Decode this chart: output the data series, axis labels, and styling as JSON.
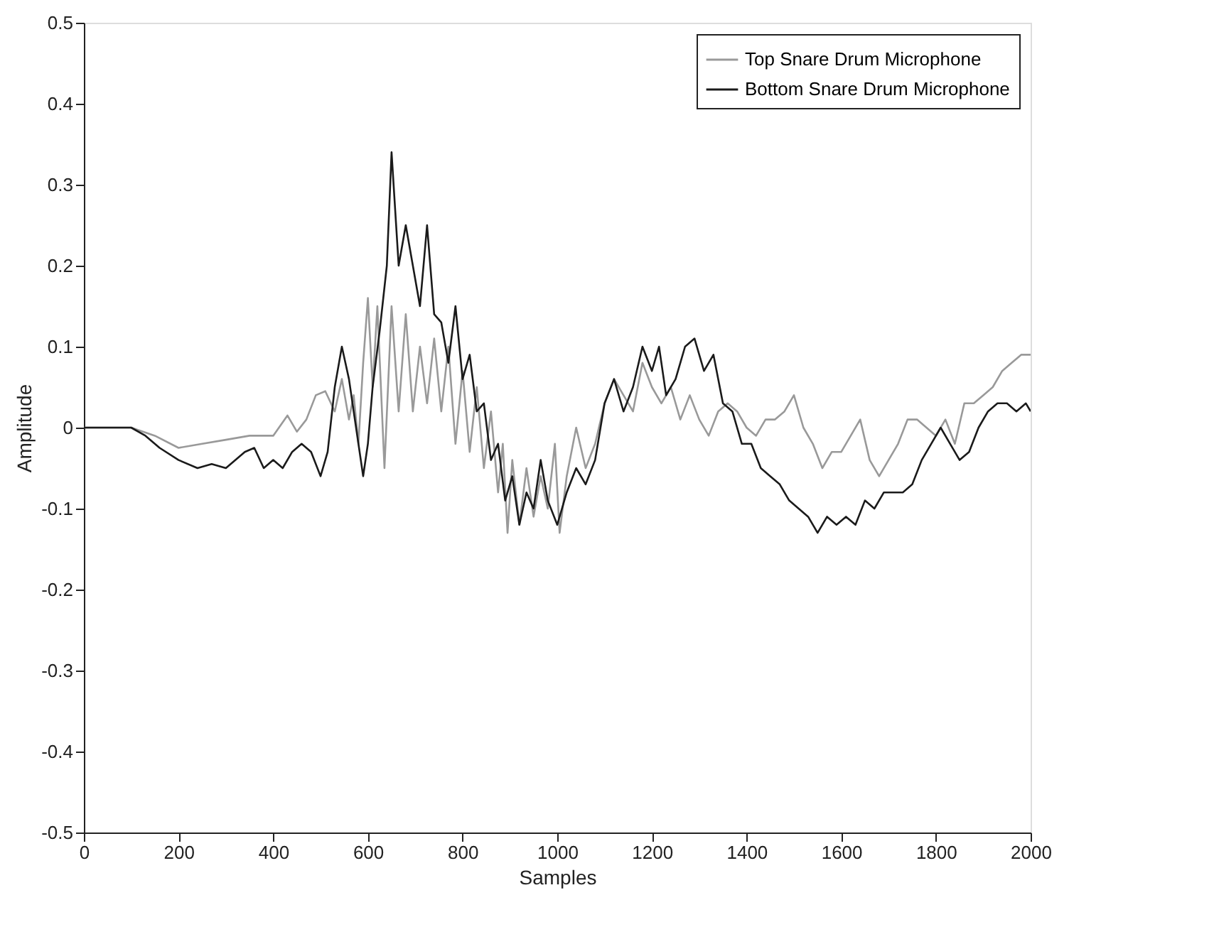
{
  "chart_data": {
    "type": "line",
    "xlabel": "Samples",
    "ylabel": "Amplitude",
    "xlim": [
      0,
      2000
    ],
    "ylim": [
      -0.5,
      0.5
    ],
    "xticks": [
      0,
      200,
      400,
      600,
      800,
      1000,
      1200,
      1400,
      1600,
      1800,
      2000
    ],
    "yticks": [
      -0.5,
      -0.4,
      -0.3,
      -0.2,
      -0.1,
      0,
      0.1,
      0.2,
      0.3,
      0.4,
      0.5
    ],
    "grid": false,
    "legend": "top right",
    "marker": "none",
    "line_style": "solid",
    "series": [
      {
        "name": "Top Snare Drum Microphone",
        "color": "#999999",
        "x": [
          0,
          100,
          150,
          200,
          250,
          300,
          350,
          400,
          430,
          450,
          470,
          490,
          510,
          530,
          545,
          560,
          570,
          580,
          590,
          600,
          610,
          620,
          635,
          650,
          665,
          680,
          695,
          710,
          725,
          740,
          755,
          770,
          785,
          800,
          815,
          830,
          845,
          860,
          875,
          885,
          895,
          905,
          920,
          935,
          950,
          965,
          980,
          995,
          1005,
          1020,
          1040,
          1060,
          1080,
          1100,
          1120,
          1140,
          1160,
          1180,
          1200,
          1220,
          1240,
          1260,
          1280,
          1300,
          1320,
          1340,
          1360,
          1380,
          1400,
          1420,
          1440,
          1460,
          1480,
          1500,
          1520,
          1540,
          1560,
          1580,
          1600,
          1620,
          1640,
          1660,
          1680,
          1700,
          1720,
          1740,
          1760,
          1780,
          1800,
          1820,
          1840,
          1860,
          1880,
          1900,
          1920,
          1940,
          1960,
          1980,
          2000
        ],
        "values": [
          0,
          0,
          -0.01,
          -0.025,
          -0.02,
          -0.015,
          -0.01,
          -0.01,
          0.015,
          -0.005,
          0.01,
          0.04,
          0.045,
          0.02,
          0.06,
          0.01,
          0.04,
          -0.02,
          0.08,
          0.16,
          0.05,
          0.15,
          -0.05,
          0.15,
          0.02,
          0.14,
          0.02,
          0.1,
          0.03,
          0.11,
          0.02,
          0.1,
          -0.02,
          0.07,
          -0.03,
          0.05,
          -0.05,
          0.02,
          -0.08,
          -0.02,
          -0.13,
          -0.04,
          -0.12,
          -0.05,
          -0.11,
          -0.06,
          -0.1,
          -0.02,
          -0.13,
          -0.06,
          0,
          -0.05,
          -0.02,
          0.03,
          0.06,
          0.04,
          0.02,
          0.08,
          0.05,
          0.03,
          0.05,
          0.01,
          0.04,
          0.01,
          -0.01,
          0.02,
          0.03,
          0.02,
          0,
          -0.01,
          0.01,
          0.01,
          0.02,
          0.04,
          0,
          -0.02,
          -0.05,
          -0.03,
          -0.03,
          -0.01,
          0.01,
          -0.04,
          -0.06,
          -0.04,
          -0.02,
          0.01,
          0.01,
          0,
          -0.01,
          0.01,
          -0.02,
          0.03,
          0.03,
          0.04,
          0.05,
          0.07,
          0.08,
          0.09,
          0.09
        ]
      },
      {
        "name": "Bottom Snare Drum Microphone",
        "color": "#1a1a1a",
        "x": [
          0,
          100,
          130,
          160,
          200,
          240,
          270,
          300,
          340,
          360,
          380,
          400,
          420,
          440,
          460,
          480,
          500,
          515,
          530,
          545,
          560,
          575,
          590,
          600,
          610,
          625,
          640,
          650,
          665,
          680,
          695,
          710,
          725,
          740,
          755,
          770,
          785,
          800,
          815,
          830,
          845,
          860,
          875,
          890,
          905,
          920,
          935,
          950,
          965,
          980,
          1000,
          1020,
          1040,
          1060,
          1080,
          1100,
          1120,
          1140,
          1160,
          1180,
          1200,
          1215,
          1230,
          1250,
          1270,
          1290,
          1310,
          1330,
          1350,
          1370,
          1390,
          1410,
          1430,
          1450,
          1470,
          1490,
          1510,
          1530,
          1550,
          1570,
          1590,
          1610,
          1630,
          1650,
          1670,
          1690,
          1710,
          1730,
          1750,
          1770,
          1790,
          1810,
          1830,
          1850,
          1870,
          1890,
          1910,
          1930,
          1950,
          1970,
          1990,
          2000
        ],
        "values": [
          0,
          0,
          -0.01,
          -0.025,
          -0.04,
          -0.05,
          -0.045,
          -0.05,
          -0.03,
          -0.025,
          -0.05,
          -0.04,
          -0.05,
          -0.03,
          -0.02,
          -0.03,
          -0.06,
          -0.03,
          0.05,
          0.1,
          0.06,
          0,
          -0.06,
          -0.02,
          0.05,
          0.12,
          0.2,
          0.34,
          0.2,
          0.25,
          0.2,
          0.15,
          0.25,
          0.14,
          0.13,
          0.08,
          0.15,
          0.06,
          0.09,
          0.02,
          0.03,
          -0.04,
          -0.02,
          -0.09,
          -0.06,
          -0.12,
          -0.08,
          -0.1,
          -0.04,
          -0.09,
          -0.12,
          -0.08,
          -0.05,
          -0.07,
          -0.04,
          0.03,
          0.06,
          0.02,
          0.05,
          0.1,
          0.07,
          0.1,
          0.04,
          0.06,
          0.1,
          0.11,
          0.07,
          0.09,
          0.03,
          0.02,
          -0.02,
          -0.02,
          -0.05,
          -0.06,
          -0.07,
          -0.09,
          -0.1,
          -0.11,
          -0.13,
          -0.11,
          -0.12,
          -0.11,
          -0.12,
          -0.09,
          -0.1,
          -0.08,
          -0.08,
          -0.08,
          -0.07,
          -0.04,
          -0.02,
          0,
          -0.02,
          -0.04,
          -0.03,
          0,
          0.02,
          0.03,
          0.03,
          0.02,
          0.03,
          0.02
        ]
      }
    ]
  }
}
